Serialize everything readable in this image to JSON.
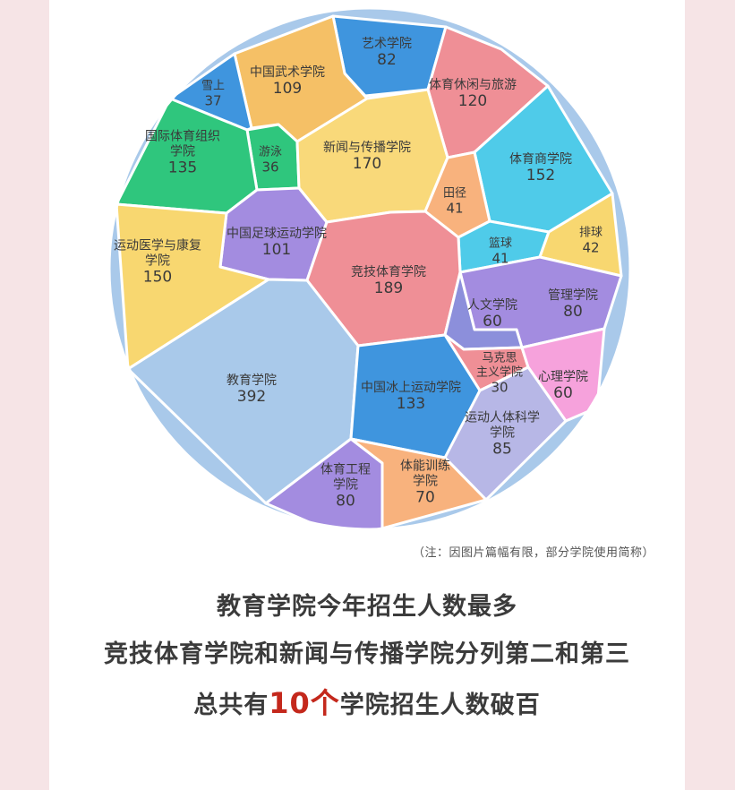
{
  "chart_data": {
    "type": "voronoi-treemap",
    "cells": [
      {
        "label": "艺术学院",
        "value": 82,
        "color": "#3f95de"
      },
      {
        "label": "中国武术学院",
        "value": 109,
        "color": "#f5c066"
      },
      {
        "label": "雪上",
        "value": 37,
        "color": "#3f95de"
      },
      {
        "label": "体育休闲与旅游",
        "value": 120,
        "color": "#ef8f96"
      },
      {
        "label": "游泳",
        "value": 36,
        "color": "#2fc67d"
      },
      {
        "label": "新闻与传播学院",
        "value": 170,
        "color": "#f9d97a"
      },
      {
        "label": "国际体育组织学院",
        "value": 135,
        "color": "#2fc67d"
      },
      {
        "label": "体育商学院",
        "value": 152,
        "color": "#4fcbe9"
      },
      {
        "label": "田径",
        "value": 41,
        "color": "#f8b27d"
      },
      {
        "label": "中国足球运动学院",
        "value": 101,
        "color": "#a38ce0"
      },
      {
        "label": "篮球",
        "value": 41,
        "color": "#4fcbe9"
      },
      {
        "label": "排球",
        "value": 42,
        "color": "#f8d770"
      },
      {
        "label": "运动医学与康复学院",
        "value": 150,
        "color": "#f8d770"
      },
      {
        "label": "竞技体育学院",
        "value": 189,
        "color": "#ef8f96"
      },
      {
        "label": "管理学院",
        "value": 80,
        "color": "#a38ce0"
      },
      {
        "label": "人文学院",
        "value": 60,
        "color": "#8c8fdb"
      },
      {
        "label": "马克思主义学院",
        "value": 30,
        "color": "#ef8f96"
      },
      {
        "label": "心理学院",
        "value": 60,
        "color": "#f6a2dc"
      },
      {
        "label": "教育学院",
        "value": 392,
        "color": "#a9c9ea"
      },
      {
        "label": "中国冰上运动学院",
        "value": 133,
        "color": "#3f95de"
      },
      {
        "label": "运动人体科学学院",
        "value": 85,
        "color": "#b7b7e6"
      },
      {
        "label": "体育工程学院",
        "value": 80,
        "color": "#a38ce0"
      },
      {
        "label": "体能训练学院",
        "value": 70,
        "color": "#f8b27d"
      }
    ]
  },
  "note": "（注：因图片篇幅有限，部分学院使用简称）",
  "summary": {
    "line1": "教育学院今年招生人数最多",
    "line2": "竞技体育学院和新闻与传播学院分列第二和第三",
    "line3_pre": "总共有",
    "line3_num": "10个",
    "line3_post": "学院招生人数破百"
  }
}
